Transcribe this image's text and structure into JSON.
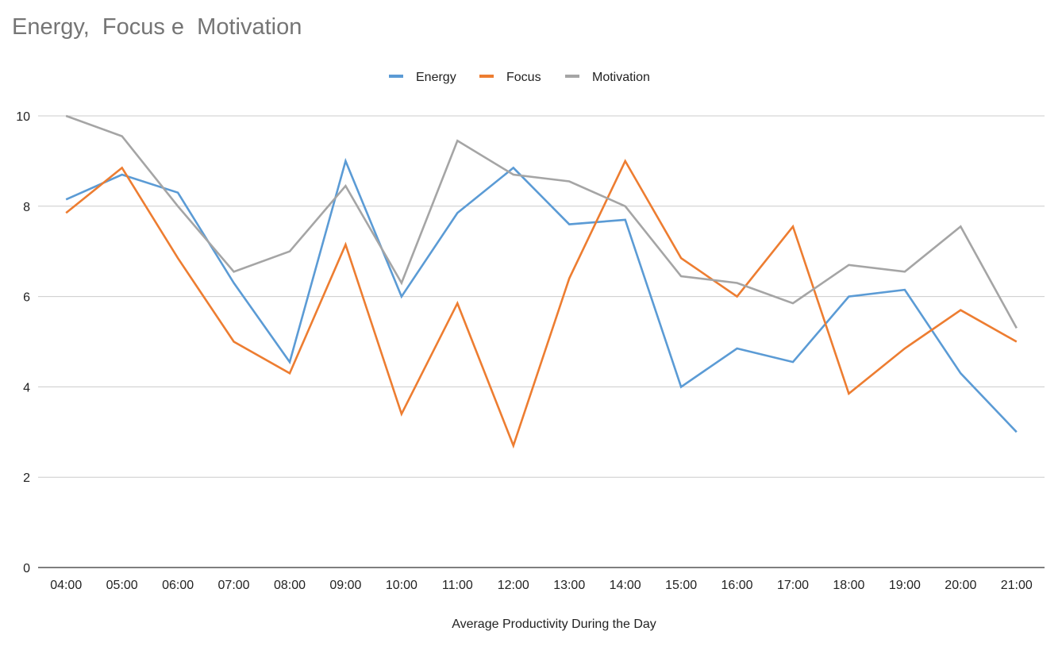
{
  "chart_data": {
    "type": "line",
    "title": "Energy,  Focus e  Motivation",
    "xlabel": "Average Productivity During the Day",
    "ylabel": "",
    "ylim": [
      0,
      10
    ],
    "yticks": [
      0,
      2,
      4,
      6,
      8,
      10
    ],
    "grid": true,
    "legend_position": "top-center",
    "categories": [
      "04:00",
      "05:00",
      "06:00",
      "07:00",
      "08:00",
      "09:00",
      "10:00",
      "11:00",
      "12:00",
      "13:00",
      "14:00",
      "15:00",
      "16:00",
      "17:00",
      "18:00",
      "19:00",
      "20:00",
      "21:00"
    ],
    "series": [
      {
        "name": "Energy",
        "color": "#5b9bd5",
        "values": [
          8.15,
          8.7,
          8.3,
          6.3,
          4.55,
          9.0,
          6.0,
          7.85,
          8.85,
          7.6,
          7.7,
          4.0,
          4.85,
          4.55,
          6.0,
          6.15,
          4.3,
          3.0
        ]
      },
      {
        "name": "Focus",
        "color": "#ed7d31",
        "values": [
          7.85,
          8.85,
          6.85,
          5.0,
          4.3,
          7.15,
          3.4,
          5.85,
          2.7,
          6.4,
          9.0,
          6.85,
          6.0,
          7.55,
          3.85,
          4.85,
          5.7,
          5.0
        ]
      },
      {
        "name": "Motivation",
        "color": "#a5a5a5",
        "values": [
          10.0,
          9.55,
          8.0,
          6.55,
          7.0,
          8.45,
          6.3,
          9.45,
          8.7,
          8.55,
          8.0,
          6.45,
          6.3,
          5.85,
          6.7,
          6.55,
          7.55,
          5.3
        ]
      }
    ]
  }
}
